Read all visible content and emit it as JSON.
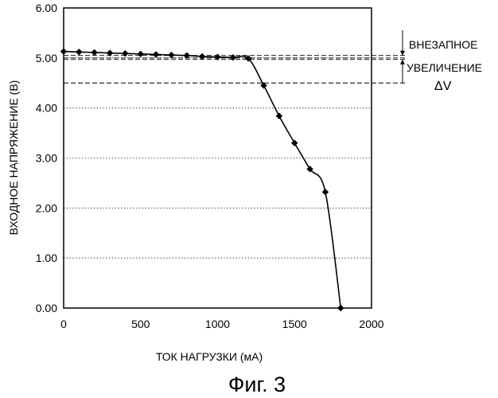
{
  "chart_data": {
    "type": "line",
    "xlabel": "ТОК НАГРУЗКИ (мА)",
    "ylabel": "ВХОДНОЕ НАПРЯЖЕНИЕ (В)",
    "xlim": [
      0,
      2000
    ],
    "ylim": [
      0,
      6
    ],
    "x_ticks": [
      "0",
      "500",
      "1000",
      "1500",
      "2000"
    ],
    "y_ticks": [
      "0.00",
      "1.00",
      "2.00",
      "3.00",
      "4.00",
      "5.00",
      "6.00"
    ],
    "grid": "horizontal dotted",
    "series": [
      {
        "x": [
          0,
          100,
          200,
          300,
          400,
          500,
          600,
          700,
          800,
          900,
          1000,
          1100,
          1200,
          1300,
          1400,
          1500,
          1600,
          1700,
          1800
        ],
        "y": [
          5.13,
          5.12,
          5.11,
          5.1,
          5.09,
          5.08,
          5.07,
          5.06,
          5.05,
          5.03,
          5.02,
          5.01,
          4.99,
          4.45,
          3.84,
          3.3,
          2.78,
          2.32,
          0.0
        ]
      }
    ],
    "reference_lines": [
      5.05,
      5.0,
      4.97,
      4.5
    ],
    "annotation": {
      "lines": [
        "ВНЕЗАПНОЕ",
        "УВЕЛИЧЕНИЕ",
        "ΔV"
      ]
    }
  },
  "caption": "Фиг. 3"
}
